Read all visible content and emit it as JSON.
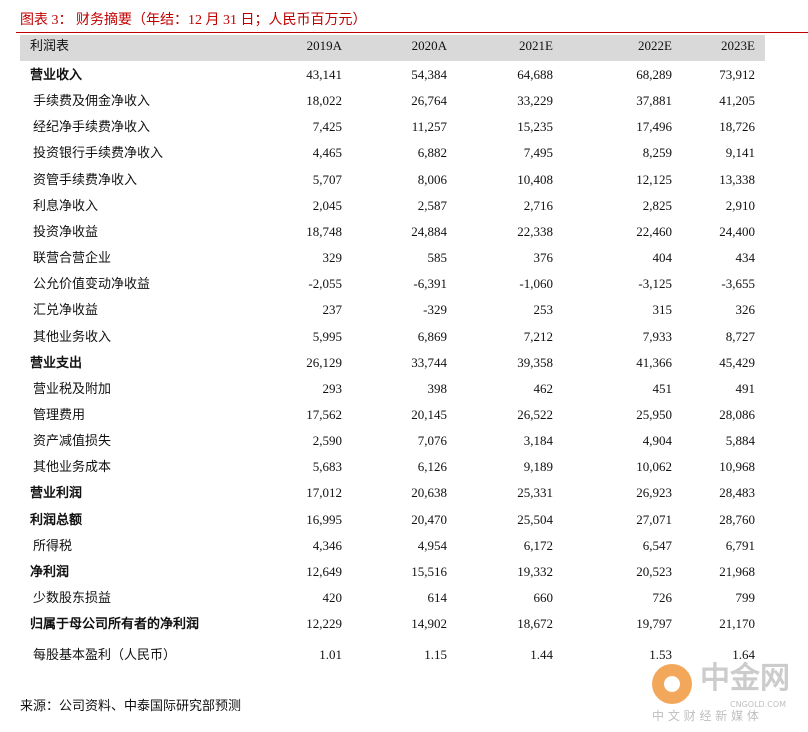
{
  "header": {
    "title": "图表 3： 财务摘要（年结：12 月 31 日；人民币百万元）"
  },
  "table": {
    "columns": [
      "利润表",
      "2019A",
      "2020A",
      "2021E",
      "2022E",
      "2023E"
    ],
    "rows": [
      {
        "label": "营业收入",
        "values": [
          "43,141",
          "54,384",
          "64,688",
          "68,289",
          "73,912"
        ]
      },
      {
        "label": "手续费及佣金净收入",
        "values": [
          "18,022",
          "26,764",
          "33,229",
          "37,881",
          "41,205"
        ]
      },
      {
        "label": "经纪净手续费净收入",
        "values": [
          "7,425",
          "11,257",
          "15,235",
          "17,496",
          "18,726"
        ]
      },
      {
        "label": "投资银行手续费净收入",
        "values": [
          "4,465",
          "6,882",
          "7,495",
          "8,259",
          "9,141"
        ]
      },
      {
        "label": "资管手续费净收入",
        "values": [
          "5,707",
          "8,006",
          "10,408",
          "12,125",
          "13,338"
        ]
      },
      {
        "label": "利息净收入",
        "values": [
          "2,045",
          "2,587",
          "2,716",
          "2,825",
          "2,910"
        ]
      },
      {
        "label": "投资净收益",
        "values": [
          "18,748",
          "24,884",
          "22,338",
          "22,460",
          "24,400"
        ]
      },
      {
        "label": "联营合营企业",
        "values": [
          "329",
          "585",
          "376",
          "404",
          "434"
        ]
      },
      {
        "label": "公允价值变动净收益",
        "values": [
          "-2,055",
          "-6,391",
          "-1,060",
          "-3,125",
          "-3,655"
        ]
      },
      {
        "label": "汇兑净收益",
        "values": [
          "237",
          "-329",
          "253",
          "315",
          "326"
        ]
      },
      {
        "label": "其他业务收入",
        "values": [
          "5,995",
          "6,869",
          "7,212",
          "7,933",
          "8,727"
        ]
      },
      {
        "label": "营业支出",
        "values": [
          "26,129",
          "33,744",
          "39,358",
          "41,366",
          "45,429"
        ]
      },
      {
        "label": "营业税及附加",
        "values": [
          "293",
          "398",
          "462",
          "451",
          "491"
        ]
      },
      {
        "label": "管理费用",
        "values": [
          "17,562",
          "20,145",
          "26,522",
          "25,950",
          "28,086"
        ]
      },
      {
        "label": "资产减值损失",
        "values": [
          "2,590",
          "7,076",
          "3,184",
          "4,904",
          "5,884"
        ]
      },
      {
        "label": "其他业务成本",
        "values": [
          "5,683",
          "6,126",
          "9,189",
          "10,062",
          "10,968"
        ]
      },
      {
        "label": "营业利润",
        "values": [
          "17,012",
          "20,638",
          "25,331",
          "26,923",
          "28,483"
        ]
      },
      {
        "label": "利润总额",
        "values": [
          "16,995",
          "20,470",
          "25,504",
          "27,071",
          "28,760"
        ]
      },
      {
        "label": "所得税",
        "values": [
          "4,346",
          "4,954",
          "6,172",
          "6,547",
          "6,791"
        ]
      },
      {
        "label": "净利润",
        "values": [
          "12,649",
          "15,516",
          "19,332",
          "20,523",
          "21,968"
        ]
      },
      {
        "label": "少数股东损益",
        "values": [
          "420",
          "614",
          "660",
          "726",
          "799"
        ]
      },
      {
        "label": "归属于母公司所有者的净利润",
        "values": [
          "12,229",
          "14,902",
          "18,672",
          "19,797",
          "21,170"
        ]
      },
      {
        "label": "每股基本盈利（人民币）",
        "values": [
          "1.01",
          "1.15",
          "1.44",
          "1.53",
          "1.64"
        ]
      }
    ]
  },
  "footer": {
    "source": "来源：公司资料、中泰国际研究部预测"
  },
  "watermark": {
    "brand": "中金网",
    "domain": "CNGOLD.COM",
    "slogan": "中 文 财 经 新 媒 体"
  }
}
